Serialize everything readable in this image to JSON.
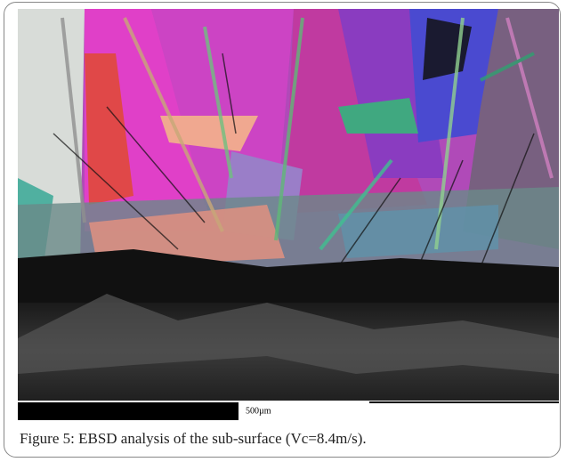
{
  "figure": {
    "scale_bar_label": "500µm",
    "caption": "Figure 5: EBSD analysis of the sub-surface (Vc=8.4m/s)."
  }
}
